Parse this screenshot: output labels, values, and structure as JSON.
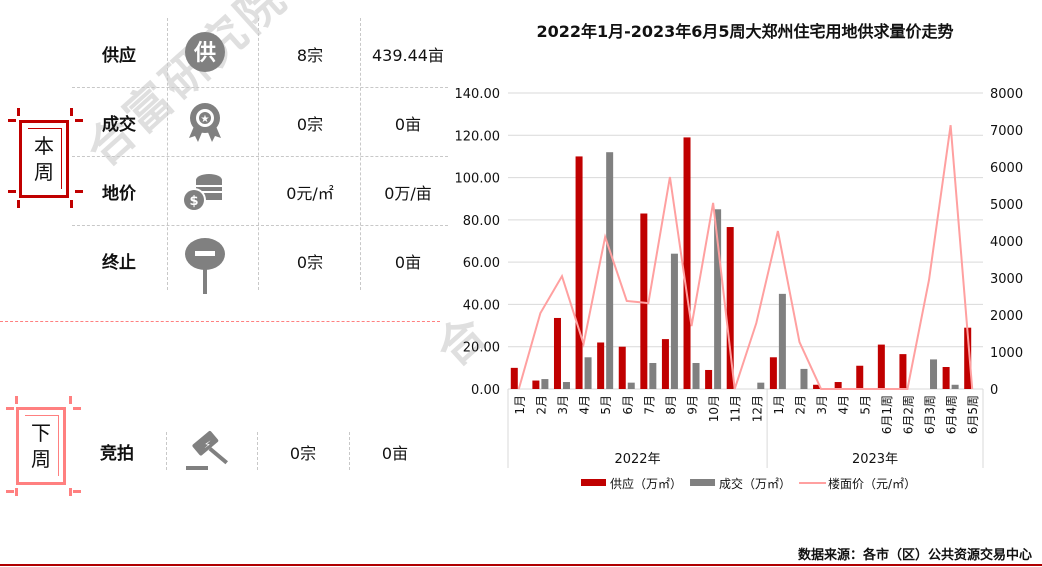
{
  "watermark": "合富研究院",
  "this_week": {
    "label_chars": [
      "本",
      "周"
    ],
    "color": "#c00000",
    "rows": [
      {
        "label": "供应",
        "icon": "supply-badge-icon",
        "icon_text": "供",
        "count": "8宗",
        "area": "439.44亩"
      },
      {
        "label": "成交",
        "icon": "award-ribbon-icon",
        "count": "0宗",
        "area": "0亩"
      },
      {
        "label": "地价",
        "icon": "coins-dollar-icon",
        "count": "0元/㎡",
        "area": "0万/亩"
      },
      {
        "label": "终止",
        "icon": "stop-sign-icon",
        "count": "0宗",
        "area": "0亩"
      }
    ]
  },
  "next_week": {
    "label_chars": [
      "下",
      "周"
    ],
    "color": "#ff8080",
    "rows": [
      {
        "label": "竞拍",
        "icon": "auction-gavel-icon",
        "count": "0宗",
        "area": "0亩"
      }
    ]
  },
  "chart_data": {
    "type": "bar",
    "title": "2022年1月-2023年6月5周大郑州住宅用地供求量价走势",
    "categories": [
      "1月",
      "2月",
      "3月",
      "4月",
      "5月",
      "6月",
      "7月",
      "8月",
      "9月",
      "10月",
      "11月",
      "12月",
      "1月",
      "2月",
      "3月",
      "4月",
      "5月",
      "6月1周",
      "6月2周",
      "6月3周",
      "6月4周",
      "6月5周"
    ],
    "category_groups": [
      {
        "label": "2022年",
        "count": 12
      },
      {
        "label": "2023年",
        "count": 10
      }
    ],
    "series": [
      {
        "name": "供应（万㎡）",
        "type": "bar",
        "axis": "left",
        "color": "#c00000",
        "values": [
          10,
          4,
          33.6,
          110,
          22,
          20,
          83,
          23.6,
          119,
          9,
          76.6,
          0,
          15,
          0,
          2,
          3.3,
          11,
          21,
          16.5,
          0,
          10.4,
          29
        ]
      },
      {
        "name": "成交（万㎡）",
        "type": "bar",
        "axis": "left",
        "color": "#808080",
        "values": [
          0,
          4.7,
          3.3,
          15,
          112,
          3,
          12.3,
          64,
          12.3,
          85,
          0,
          3,
          45,
          9.5,
          0,
          0,
          0,
          0,
          0,
          14,
          2,
          0
        ]
      },
      {
        "name": "楼面价（元/㎡）",
        "type": "line",
        "axis": "right",
        "color": "#ffa0a0",
        "values": [
          0,
          2050,
          3050,
          1220,
          4110,
          2380,
          2320,
          5730,
          1700,
          5030,
          0,
          1780,
          4270,
          1270,
          0,
          0,
          0,
          0,
          0,
          2950,
          7130,
          0
        ]
      }
    ],
    "y_left": {
      "min": 0,
      "max": 140,
      "ticks": [
        "0.00",
        "20.00",
        "40.00",
        "60.00",
        "80.00",
        "100.00",
        "120.00",
        "140.00"
      ]
    },
    "y_right": {
      "min": 0,
      "max": 8000,
      "ticks": [
        "0",
        "1000",
        "2000",
        "3000",
        "4000",
        "5000",
        "6000",
        "7000",
        "8000"
      ]
    },
    "grid": true,
    "legend_position": "bottom"
  },
  "source": "数据来源：各市（区）公共资源交易中心"
}
